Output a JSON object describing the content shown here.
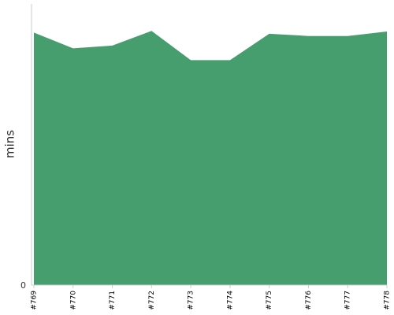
{
  "chart_data": {
    "type": "area",
    "categories": [
      "#769",
      "#770",
      "#771",
      "#772",
      "#773",
      "#774",
      "#775",
      "#776",
      "#777",
      "#778"
    ],
    "series": [
      {
        "values": [
          44.9,
          42.1,
          42.6,
          45.2,
          40.0,
          40.0,
          44.7,
          44.3,
          44.3,
          45.1
        ]
      }
    ],
    "title": "",
    "xlabel": "",
    "ylabel": "mins",
    "ylim": [
      0,
      50
    ],
    "yticks": [
      0
    ],
    "y_tick_labels": [
      "0"
    ],
    "grid": false,
    "legend": "none",
    "colors": {
      "area_fill": "#469d6d",
      "axis": "#cccccc"
    }
  }
}
